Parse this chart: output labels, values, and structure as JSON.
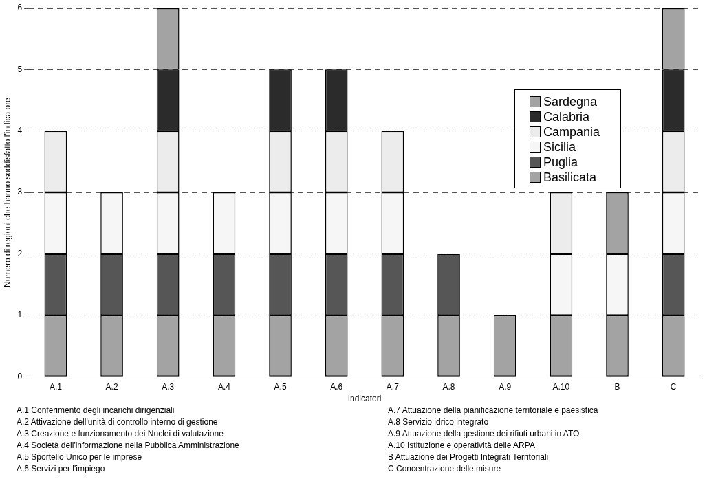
{
  "chart_data": {
    "type": "bar",
    "stacked": true,
    "ylabel": "Numero di regioni che hanno soddisfatto l'indicatore",
    "xlabel": "Indicatori",
    "categories": [
      "A.1",
      "A.2",
      "A.3",
      "A.4",
      "A.5",
      "A.6",
      "A.7",
      "A.8",
      "A.9",
      "A.10",
      "B",
      "C"
    ],
    "series": [
      {
        "name": "Basilicata",
        "color": "#a3a3a3",
        "values": [
          1,
          1,
          1,
          1,
          1,
          1,
          1,
          1,
          1,
          1,
          1,
          1
        ]
      },
      {
        "name": "Puglia",
        "color": "#565656",
        "values": [
          1,
          1,
          1,
          1,
          1,
          1,
          1,
          1,
          0,
          0,
          0,
          1
        ]
      },
      {
        "name": "Sicilia",
        "color": "#f6f6f6",
        "values": [
          1,
          1,
          1,
          1,
          1,
          1,
          1,
          0,
          0,
          1,
          1,
          1
        ]
      },
      {
        "name": "Campania",
        "color": "#ececec",
        "values": [
          1,
          0,
          1,
          0,
          1,
          1,
          1,
          0,
          0,
          1,
          0,
          1
        ]
      },
      {
        "name": "Calabria",
        "color": "#2b2b2b",
        "values": [
          0,
          0,
          1,
          0,
          1,
          1,
          0,
          0,
          0,
          0,
          0,
          1
        ]
      },
      {
        "name": "Sardegna",
        "color": "#a3a3a3",
        "values": [
          0,
          0,
          1,
          0,
          0,
          0,
          0,
          0,
          0,
          0,
          1,
          1
        ]
      }
    ],
    "ylim": [
      0,
      6
    ],
    "yticks": [
      0,
      1,
      2,
      3,
      4,
      5,
      6
    ],
    "grid": "y",
    "legend": "right",
    "annotations": [
      "A.1 Conferimento degli incarichi dirigenziali",
      "A.2 Attivazione dell'unità di controllo interno di gestione",
      "A.3 Creazione e funzionamento dei Nuclei di valutazione",
      "A.4 Società dell'informazione nella Pubblica Amministrazione",
      "A.5 Sportello Unico per le imprese",
      "A.6 Servizi per l'impiego",
      "A.7 Attuazione della pianificazione territoriale e paesistica",
      "A.8 Servizio idrico integrato",
      "A.9 Attuazione della gestione dei rifiuti urbani in ATO",
      "A.10 Istituzione e operatività delle ARPA",
      "B Attuazione dei Progetti Integrati Territoriali",
      "C Concentrazione delle misure"
    ]
  }
}
